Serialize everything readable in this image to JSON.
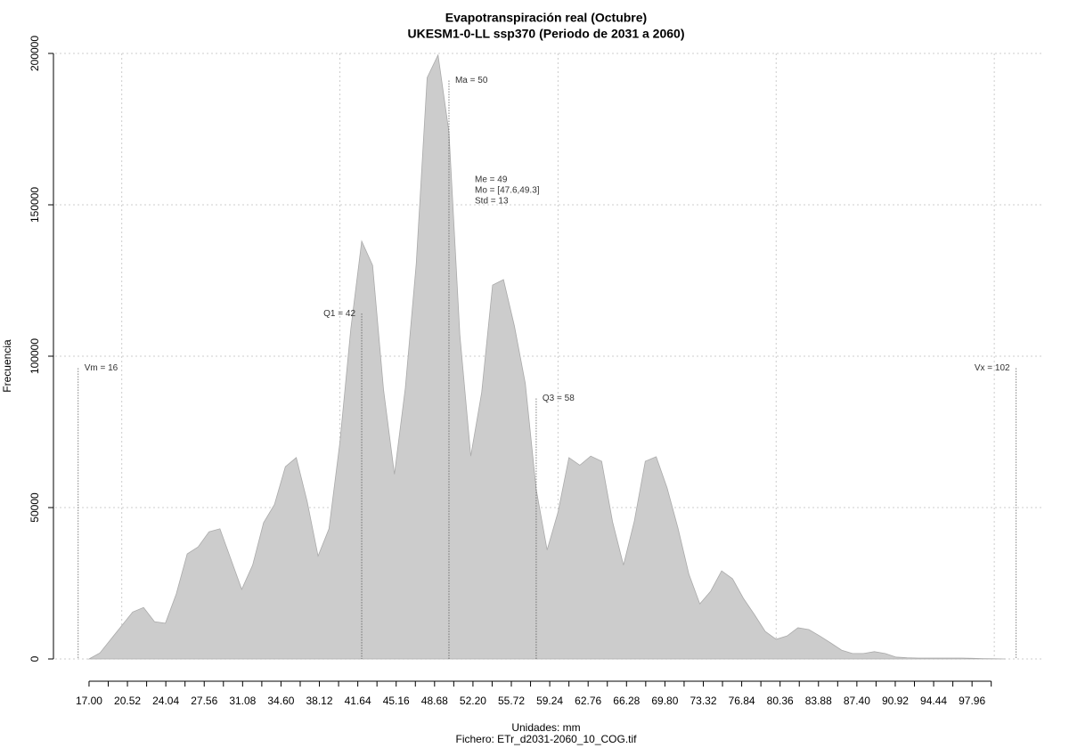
{
  "chart_data": {
    "type": "area",
    "title": "Evapotranspiración real (Octubre)",
    "subtitle": "UKESM1-0-LL ssp370 (Periodo de 2031 a 2060)",
    "ylabel": "Frecuencia",
    "xlabel": "Unidades: mm",
    "caption": "Fichero: ETr_d2031-2060_10_COG.tif",
    "color": "#cccccc",
    "grid": true,
    "x": [
      17,
      18,
      19,
      20,
      21,
      22,
      23,
      24,
      25,
      26,
      27,
      28,
      29,
      30,
      31,
      32,
      33,
      34,
      35,
      36,
      37,
      38,
      39,
      40,
      41,
      42,
      43,
      44,
      45,
      46,
      47,
      48,
      49,
      50,
      51,
      52,
      53,
      54,
      55,
      56,
      57,
      58,
      59,
      60,
      61,
      62,
      63,
      64,
      65,
      66,
      67,
      68,
      69,
      70,
      71,
      72,
      73,
      74,
      75,
      76,
      77,
      78,
      79,
      80,
      81,
      82,
      83,
      84,
      85,
      86,
      87,
      88,
      89,
      90,
      91,
      92,
      93,
      94,
      95,
      96,
      97,
      98,
      99,
      100,
      101
    ],
    "values": [
      0,
      2000,
      6500,
      11000,
      15500,
      17000,
      12300,
      11800,
      21500,
      34700,
      37000,
      42000,
      43000,
      33000,
      23000,
      31000,
      45000,
      51000,
      63500,
      66500,
      52000,
      34000,
      43000,
      71500,
      109000,
      138000,
      130000,
      89000,
      61000,
      89500,
      130500,
      192000,
      199500,
      174000,
      107000,
      67000,
      88000,
      123500,
      125300,
      110000,
      91000,
      56000,
      36000,
      48500,
      66500,
      64000,
      67000,
      65300,
      45300,
      31000,
      45600,
      65300,
      66800,
      56500,
      43200,
      28000,
      18200,
      22400,
      29100,
      26500,
      20000,
      14700,
      9100,
      6500,
      7600,
      10300,
      9700,
      7600,
      5300,
      2900,
      1800,
      1800,
      2400,
      1800,
      600,
      400,
      300,
      300,
      300,
      300,
      300,
      200,
      100,
      50,
      0
    ],
    "xlim": [
      13.9,
      104.4
    ],
    "ylim": [
      0,
      200000
    ],
    "yticks": [
      0,
      50000,
      100000,
      150000,
      200000
    ],
    "xgrid": [
      20,
      40,
      60,
      80,
      100
    ],
    "xticks": [
      {
        "value": 17,
        "label": "17.00"
      },
      {
        "value": 20.52,
        "label": "20.52"
      },
      {
        "value": 24.04,
        "label": "24.04"
      },
      {
        "value": 27.56,
        "label": "27.56"
      },
      {
        "value": 31.08,
        "label": "31.08"
      },
      {
        "value": 34.6,
        "label": "34.60"
      },
      {
        "value": 38.12,
        "label": "38.12"
      },
      {
        "value": 41.64,
        "label": "41.64"
      },
      {
        "value": 45.16,
        "label": "45.16"
      },
      {
        "value": 48.68,
        "label": "48.68"
      },
      {
        "value": 52.2,
        "label": "52.20"
      },
      {
        "value": 55.72,
        "label": "55.72"
      },
      {
        "value": 59.24,
        "label": "59.24"
      },
      {
        "value": 62.76,
        "label": "62.76"
      },
      {
        "value": 66.28,
        "label": "66.28"
      },
      {
        "value": 69.8,
        "label": "69.80"
      },
      {
        "value": 73.32,
        "label": "73.32"
      },
      {
        "value": 76.84,
        "label": "76.84"
      },
      {
        "value": 80.36,
        "label": "80.36"
      },
      {
        "value": 83.88,
        "label": "83.88"
      },
      {
        "value": 87.4,
        "label": "87.40"
      },
      {
        "value": 90.92,
        "label": "90.92"
      },
      {
        "value": 94.44,
        "label": "94.44"
      },
      {
        "value": 97.96,
        "label": "97.96"
      }
    ],
    "xminorticks": [
      18.76,
      22.28,
      25.8,
      29.32,
      32.84,
      36.36,
      39.88,
      43.4,
      46.92,
      50.44,
      53.96,
      57.48,
      61,
      64.52,
      68.04,
      71.56,
      75.08,
      78.6,
      82.12,
      85.64,
      89.16,
      92.68,
      96.2,
      99.72
    ],
    "markers": [
      {
        "label": "Vm = 16",
        "x": 16,
        "y": 96000,
        "align": "left"
      },
      {
        "label": "Q1 = 42",
        "x": 42,
        "y": 114000,
        "align": "right"
      },
      {
        "label": "Ma = 50",
        "x": 50,
        "y": 191000,
        "align": "left"
      },
      {
        "label": "Q3 = 58",
        "x": 58,
        "y": 86000,
        "align": "left"
      },
      {
        "label": "Vx = 102",
        "x": 102,
        "y": 96000,
        "align": "right"
      }
    ],
    "stats": [
      "Me = 49",
      "Mo = [47.6,49.3]",
      "Std = 13"
    ]
  }
}
